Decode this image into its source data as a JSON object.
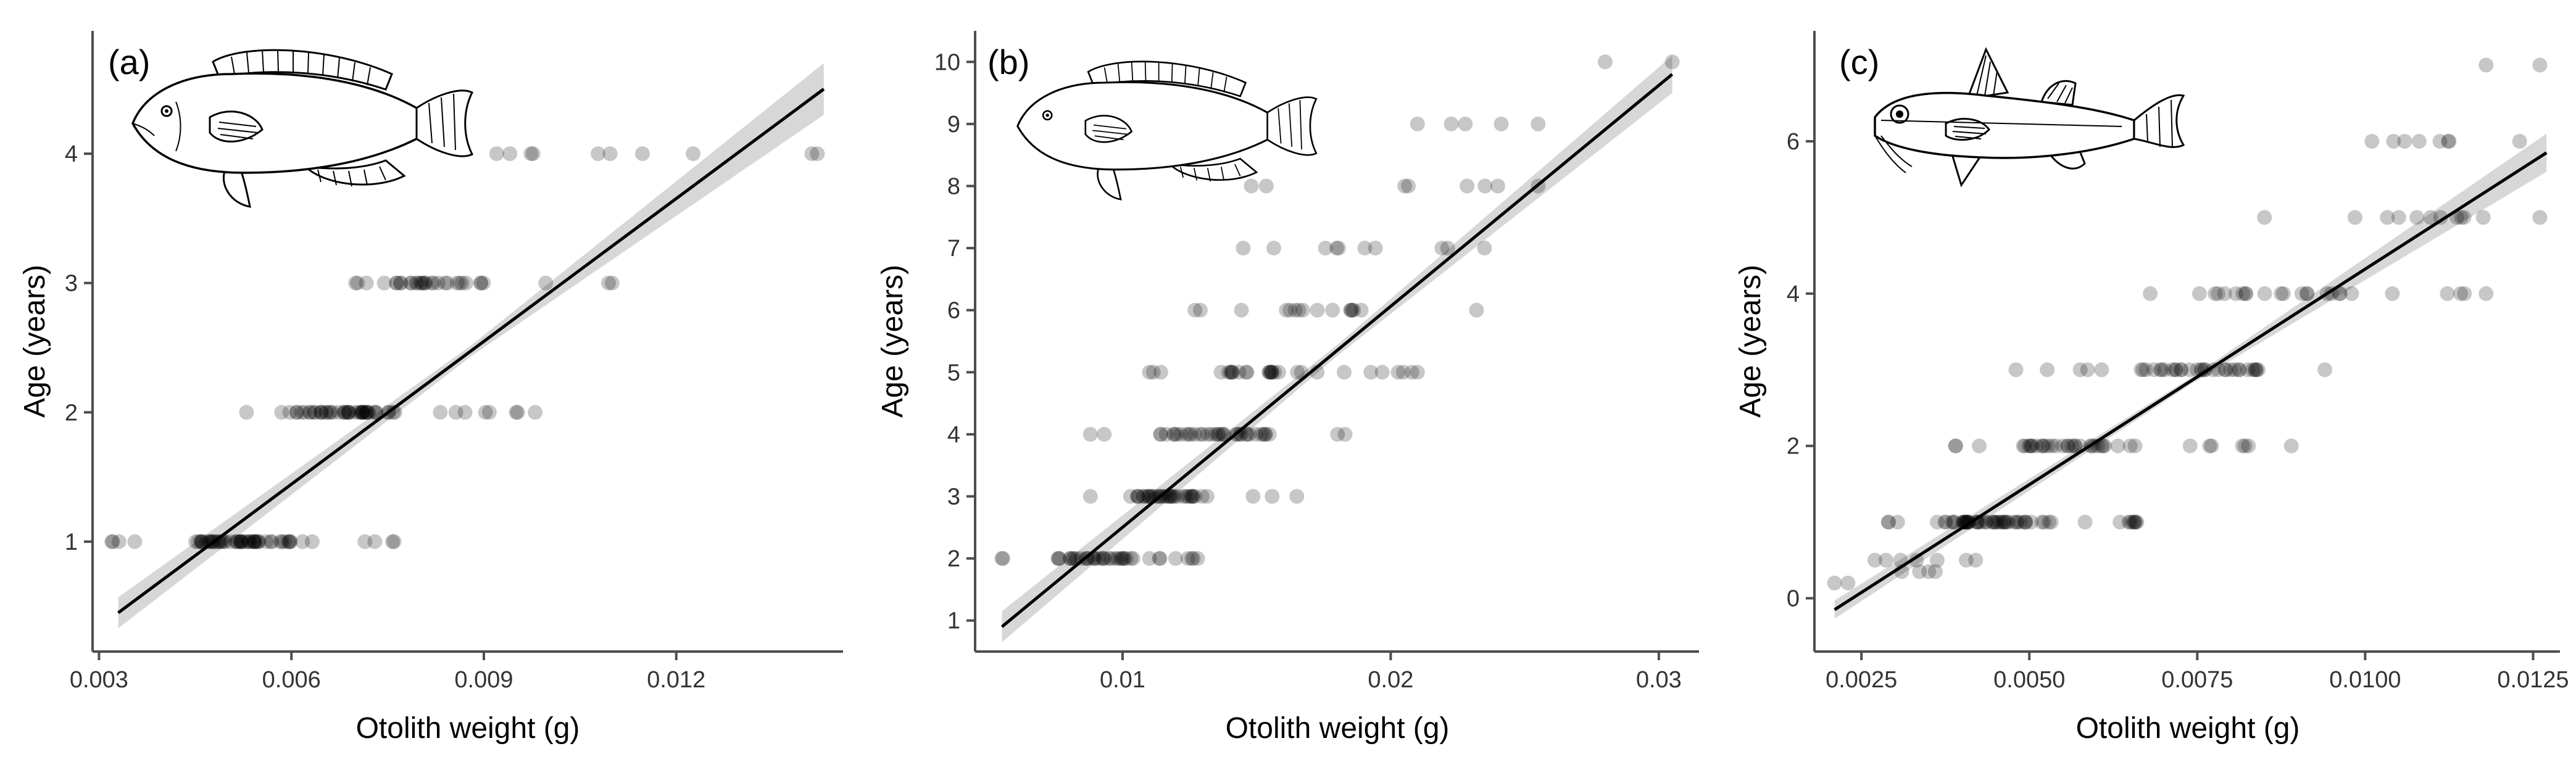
{
  "chart_data": [
    {
      "type": "scatter",
      "panel": "(a)",
      "xlabel": "Otolith weight (g)",
      "ylabel": "Age (years)",
      "xlim": [
        0.0029,
        0.0146
      ],
      "ylim": [
        0.15,
        4.95
      ],
      "xticks": [
        0.003,
        0.006,
        0.009,
        0.012
      ],
      "xtick_labels": [
        "0.003",
        "0.006",
        "0.009",
        "0.012"
      ],
      "yticks": [
        1,
        2,
        3,
        4
      ],
      "ytick_labels": [
        "1",
        "2",
        "3",
        "4"
      ],
      "fit": {
        "x": [
          0.0033,
          0.0143
        ],
        "y": [
          0.45,
          4.5
        ],
        "band_start": 0.12,
        "band_end": 0.2
      },
      "clusters": [
        {
          "age": 1,
          "min": 0.0032,
          "max": 0.0076,
          "count": 60,
          "core": [
            0.0045,
            0.006
          ]
        },
        {
          "age": 2,
          "min": 0.0053,
          "max": 0.0098,
          "count": 55,
          "core": [
            0.006,
            0.0074
          ]
        },
        {
          "age": 3,
          "min": 0.007,
          "max": 0.011,
          "count": 32,
          "core": [
            0.0077,
            0.0091
          ]
        },
        {
          "age": 4,
          "min": 0.0092,
          "max": 0.0142,
          "count": 10,
          "core": [
            0.0094,
            0.0128
          ]
        }
      ]
    },
    {
      "type": "scatter",
      "panel": "(b)",
      "xlabel": "Otolith weight (g)",
      "ylabel": "Age (years)",
      "xlim": [
        0.0045,
        0.0315
      ],
      "ylim": [
        0.5,
        10.5
      ],
      "xticks": [
        0.01,
        0.02,
        0.03
      ],
      "xtick_labels": [
        "0.01",
        "0.02",
        "0.03"
      ],
      "yticks": [
        1,
        2,
        3,
        4,
        5,
        6,
        7,
        8,
        9,
        10
      ],
      "ytick_labels": [
        "1",
        "2",
        "3",
        "4",
        "5",
        "6",
        "7",
        "8",
        "9",
        "10"
      ],
      "fit": {
        "x": [
          0.0055,
          0.0305
        ],
        "y": [
          0.9,
          9.8
        ],
        "band_start": 0.25,
        "band_end": 0.3
      },
      "clusters": [
        {
          "age": 2,
          "min": 0.0055,
          "max": 0.0128,
          "count": 40,
          "core": [
            0.0075,
            0.0105
          ]
        },
        {
          "age": 3,
          "min": 0.0088,
          "max": 0.0165,
          "count": 38,
          "core": [
            0.01,
            0.0128
          ]
        },
        {
          "age": 4,
          "min": 0.0088,
          "max": 0.0183,
          "count": 38,
          "core": [
            0.0112,
            0.0155
          ]
        },
        {
          "age": 5,
          "min": 0.011,
          "max": 0.021,
          "count": 30,
          "core": [
            0.0135,
            0.0175
          ]
        },
        {
          "age": 6,
          "min": 0.0127,
          "max": 0.0232,
          "count": 16,
          "core": [
            0.016,
            0.019
          ]
        },
        {
          "age": 7,
          "min": 0.0145,
          "max": 0.0235,
          "count": 10,
          "core": [
            0.0165,
            0.0225
          ]
        },
        {
          "age": 8,
          "min": 0.0148,
          "max": 0.0255,
          "count": 8,
          "core": [
            0.0205,
            0.0245
          ]
        },
        {
          "age": 9,
          "min": 0.021,
          "max": 0.0255,
          "count": 5,
          "core": [
            0.0225,
            0.025
          ]
        },
        {
          "age": 10,
          "min": 0.028,
          "max": 0.0305,
          "count": 2,
          "core": [
            0.028,
            0.0305
          ]
        }
      ]
    },
    {
      "type": "scatter",
      "panel": "(c)",
      "xlabel": "Otolith weight (g)",
      "ylabel": "Age (years)",
      "xlim": [
        0.0018,
        0.0129
      ],
      "ylim": [
        -0.7,
        7.45
      ],
      "xticks": [
        0.0025,
        0.005,
        0.0075,
        0.01,
        0.0125
      ],
      "xtick_labels": [
        "0.0025",
        "0.0050",
        "0.0075",
        "0.0100",
        "0.0125"
      ],
      "yticks": [
        0,
        2,
        4,
        6
      ],
      "ytick_labels": [
        "0",
        "2",
        "4",
        "6"
      ],
      "fit": {
        "x": [
          0.0021,
          0.0127
        ],
        "y": [
          -0.15,
          5.85
        ],
        "band_start": 0.12,
        "band_end": 0.25
      },
      "clusters": [
        {
          "age": 0.2,
          "min": 0.0021,
          "max": 0.0023,
          "count": 2,
          "core": [
            0.0021,
            0.0023
          ]
        },
        {
          "age": 0.35,
          "min": 0.0031,
          "max": 0.0036,
          "count": 4,
          "core": [
            0.0031,
            0.0036
          ]
        },
        {
          "age": 0.5,
          "min": 0.0027,
          "max": 0.0042,
          "count": 7,
          "core": [
            0.0028,
            0.0036
          ]
        },
        {
          "age": 1,
          "min": 0.0029,
          "max": 0.0066,
          "count": 60,
          "core": [
            0.0036,
            0.0052
          ]
        },
        {
          "age": 2,
          "min": 0.0039,
          "max": 0.0089,
          "count": 40,
          "core": [
            0.0049,
            0.0066
          ]
        },
        {
          "age": 3,
          "min": 0.0048,
          "max": 0.0094,
          "count": 38,
          "core": [
            0.0066,
            0.0085
          ]
        },
        {
          "age": 4,
          "min": 0.0068,
          "max": 0.0118,
          "count": 25,
          "core": [
            0.0077,
            0.0098
          ]
        },
        {
          "age": 5,
          "min": 0.0085,
          "max": 0.0126,
          "count": 12,
          "core": [
            0.0095,
            0.0115
          ]
        },
        {
          "age": 6,
          "min": 0.0101,
          "max": 0.0123,
          "count": 8,
          "core": [
            0.0103,
            0.0122
          ]
        },
        {
          "age": 7,
          "min": 0.0118,
          "max": 0.0126,
          "count": 2,
          "core": [
            0.0118,
            0.0126
          ]
        }
      ]
    }
  ]
}
